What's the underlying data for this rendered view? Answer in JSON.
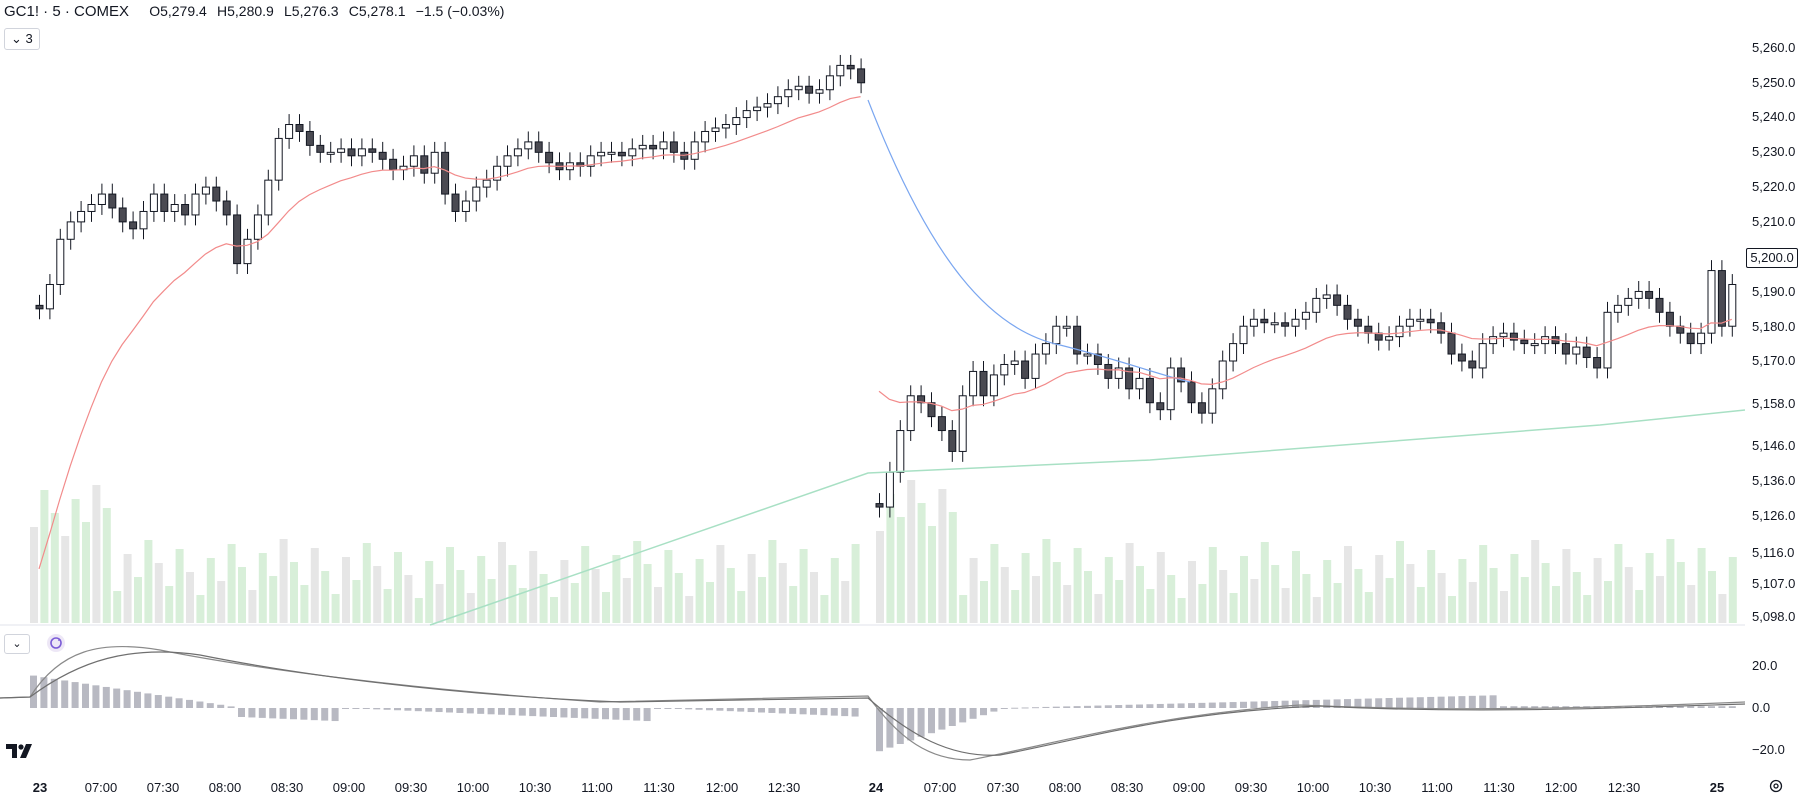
{
  "header": {
    "symbol": "GC1! · 5 · COMEX",
    "open_label": "O",
    "open": "5,279.4",
    "high_label": "H",
    "high": "5,280.9",
    "low_label": "L",
    "low": "5,276.3",
    "close_label": "C",
    "close": "5,278.1",
    "change": "−1.5 (−0.03%)",
    "indicators_toggle": "3"
  },
  "last_price_label": "5,200.0",
  "icons": {
    "collapse": "chevron-down-icon",
    "sync": "sync-icon",
    "logo": "tradingview-logo",
    "settings": "gear-icon"
  },
  "colors": {
    "up_candle": "#ffffff",
    "down_candle": "#4a4a52",
    "ema_red": "#f28b8b",
    "ema_blue": "#7aa6f0",
    "sma_green": "#a8e0c4",
    "volume_green": "#d8efd9",
    "volume_gray": "#e6e6e6",
    "macd_line": "#8a8a8a"
  },
  "chart_data": {
    "type": "candlestick",
    "price_axis": [
      "5,260.0",
      "5,250.0",
      "5,240.0",
      "5,230.0",
      "5,220.0",
      "5,210.0",
      "5,200.0",
      "5,190.0",
      "5,180.0",
      "5,170.0",
      "5,158.0",
      "5,146.0",
      "5,136.0",
      "5,126.0",
      "5,116.0",
      "5,107.0",
      "5,098.0"
    ],
    "macd_axis": [
      "20.0",
      "0.0",
      "−20.0"
    ],
    "time_axis": [
      {
        "label": "23",
        "bold": true
      },
      {
        "label": "07:00"
      },
      {
        "label": "07:30"
      },
      {
        "label": "08:00"
      },
      {
        "label": "08:30"
      },
      {
        "label": "09:00"
      },
      {
        "label": "09:30"
      },
      {
        "label": "10:00"
      },
      {
        "label": "10:30"
      },
      {
        "label": "11:00"
      },
      {
        "label": "11:30"
      },
      {
        "label": "12:00"
      },
      {
        "label": "12:30"
      },
      {
        "label": "24",
        "bold": true
      },
      {
        "label": "07:00"
      },
      {
        "label": "07:30"
      },
      {
        "label": "08:00"
      },
      {
        "label": "08:30"
      },
      {
        "label": "09:00"
      },
      {
        "label": "09:30"
      },
      {
        "label": "10:00"
      },
      {
        "label": "10:30"
      },
      {
        "label": "11:00"
      },
      {
        "label": "11:30"
      },
      {
        "label": "12:00"
      },
      {
        "label": "12:30"
      },
      {
        "label": "25",
        "bold": true
      }
    ],
    "session1_closes": [
      5185,
      5192,
      5205,
      5210,
      5213,
      5215,
      5218,
      5214,
      5210,
      5208,
      5213,
      5218,
      5213,
      5215,
      5212,
      5218,
      5220,
      5216,
      5212,
      5198,
      5205,
      5212,
      5222,
      5234,
      5238,
      5236,
      5232,
      5230,
      5230,
      5231,
      5229,
      5231,
      5230,
      5228,
      5225,
      5226,
      5229,
      5224,
      5230,
      5218,
      5213,
      5216,
      5220,
      5222,
      5226,
      5229,
      5231,
      5233,
      5230,
      5227,
      5225,
      5227,
      5226,
      5229,
      5230,
      5230,
      5229,
      5231,
      5232,
      5231,
      5233,
      5230,
      5228,
      5233,
      5236,
      5237,
      5238,
      5240,
      5242,
      5243,
      5244,
      5246,
      5248,
      5249,
      5247,
      5248,
      5252,
      5255,
      5254,
      5250
    ],
    "session2_closes": [
      5128,
      5138,
      5150,
      5160,
      5158,
      5154,
      5150,
      5144,
      5160,
      5167,
      5160,
      5166,
      5169,
      5170,
      5165,
      5172,
      5175,
      5180,
      5180,
      5172,
      5172,
      5169,
      5165,
      5168,
      5162,
      5165,
      5158,
      5156,
      5168,
      5164,
      5158,
      5155,
      5162,
      5170,
      5175,
      5180,
      5182,
      5181,
      5181,
      5180,
      5182,
      5184,
      5188,
      5189,
      5186,
      5182,
      5180,
      5178,
      5176,
      5177,
      5180,
      5182,
      5182,
      5181,
      5178,
      5172,
      5170,
      5168,
      5175,
      5177,
      5178,
      5176,
      5175,
      5175,
      5177,
      5175,
      5172,
      5174,
      5171,
      5168,
      5184,
      5186,
      5188,
      5190,
      5188,
      5184,
      5180,
      5178,
      5175,
      5178,
      5196,
      5180,
      5192
    ]
  }
}
